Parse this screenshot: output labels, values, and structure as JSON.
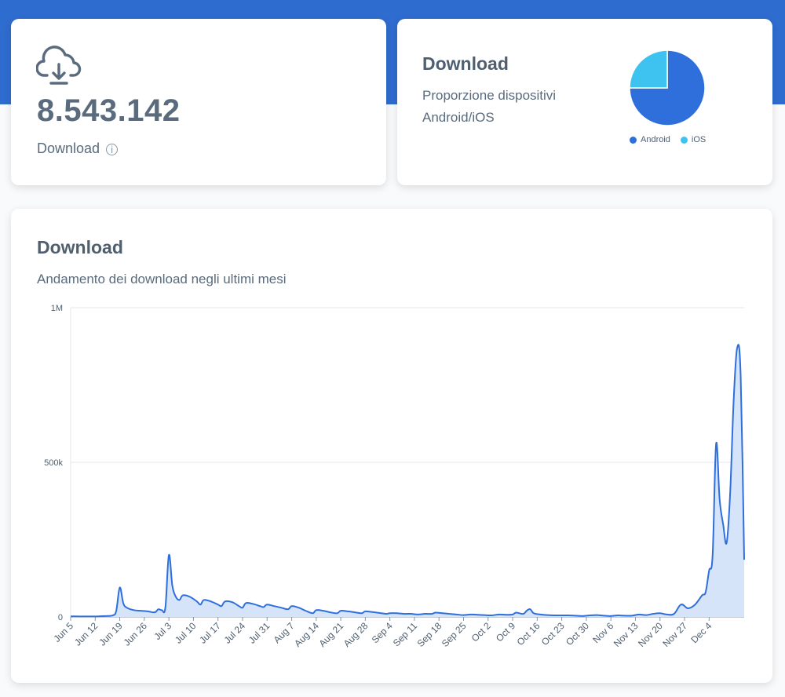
{
  "total_card": {
    "value": "8.543.142",
    "label": "Download",
    "info_icon": "info-icon",
    "icon": "cloud-download-icon"
  },
  "devices_card": {
    "title": "Download",
    "subtitle_line1": "Proporzione dispositivi",
    "subtitle_line2": "Android/iOS",
    "legend": [
      {
        "label": "Android",
        "color": "#2f6fdc"
      },
      {
        "label": "iOS",
        "color": "#3ec3f0"
      }
    ]
  },
  "trend_card": {
    "title": "Download",
    "subtitle": "Andamento dei download negli ultimi mesi"
  },
  "chart_data": [
    {
      "type": "pie",
      "title": "Download",
      "series": [
        {
          "name": "Android",
          "value": 75,
          "color": "#2f6fdc"
        },
        {
          "name": "iOS",
          "value": 25,
          "color": "#3ec3f0"
        }
      ],
      "legend_position": "bottom"
    },
    {
      "type": "area",
      "title": "Download",
      "ylim": [
        0,
        1000000
      ],
      "ytick_labels": [
        "0",
        "500k",
        "1M"
      ],
      "yticks": [
        0,
        500000,
        1000000
      ],
      "xtick_labels": [
        "Jun 5",
        "Jun 12",
        "Jun 19",
        "Jun 26",
        "Jul 3",
        "Jul 10",
        "Jul 17",
        "Jul 24",
        "Jul 31",
        "Aug 7",
        "Aug 14",
        "Aug 21",
        "Aug 28",
        "Sep 4",
        "Sep 11",
        "Sep 18",
        "Sep 25",
        "Oct 2",
        "Oct 9",
        "Oct 16",
        "Oct 23",
        "Oct 30",
        "Nov 6",
        "Nov 13",
        "Nov 20",
        "Nov 27",
        "Dec 4"
      ],
      "grid": true,
      "line_color": "#2f6fdc",
      "fill_color": "#d6e4fa",
      "points": [
        [
          0,
          2000
        ],
        [
          6,
          1500
        ],
        [
          10,
          3000
        ],
        [
          12,
          5000
        ],
        [
          13,
          20000
        ],
        [
          14,
          95000
        ],
        [
          15,
          45000
        ],
        [
          16,
          30000
        ],
        [
          18,
          22000
        ],
        [
          20,
          20000
        ],
        [
          22,
          18000
        ],
        [
          24,
          15000
        ],
        [
          25,
          25000
        ],
        [
          26,
          22000
        ],
        [
          27,
          30000
        ],
        [
          28,
          200000
        ],
        [
          29,
          100000
        ],
        [
          30,
          65000
        ],
        [
          31,
          55000
        ],
        [
          32,
          70000
        ],
        [
          34,
          65000
        ],
        [
          36,
          50000
        ],
        [
          37,
          40000
        ],
        [
          38,
          55000
        ],
        [
          40,
          50000
        ],
        [
          42,
          40000
        ],
        [
          43,
          35000
        ],
        [
          44,
          50000
        ],
        [
          46,
          48000
        ],
        [
          48,
          35000
        ],
        [
          49,
          30000
        ],
        [
          50,
          45000
        ],
        [
          52,
          42000
        ],
        [
          54,
          35000
        ],
        [
          55,
          32000
        ],
        [
          56,
          40000
        ],
        [
          58,
          35000
        ],
        [
          60,
          30000
        ],
        [
          62,
          25000
        ],
        [
          63,
          35000
        ],
        [
          65,
          30000
        ],
        [
          67,
          20000
        ],
        [
          69,
          12000
        ],
        [
          70,
          22000
        ],
        [
          72,
          20000
        ],
        [
          74,
          15000
        ],
        [
          76,
          12000
        ],
        [
          77,
          20000
        ],
        [
          79,
          18000
        ],
        [
          81,
          15000
        ],
        [
          83,
          12000
        ],
        [
          84,
          18000
        ],
        [
          86,
          16000
        ],
        [
          88,
          13000
        ],
        [
          90,
          10000
        ],
        [
          91,
          12000
        ],
        [
          93,
          12000
        ],
        [
          95,
          10000
        ],
        [
          97,
          10000
        ],
        [
          99,
          8000
        ],
        [
          101,
          10000
        ],
        [
          103,
          10000
        ],
        [
          104,
          14000
        ],
        [
          106,
          12000
        ],
        [
          108,
          10000
        ],
        [
          110,
          8000
        ],
        [
          112,
          6000
        ],
        [
          114,
          8000
        ],
        [
          116,
          7000
        ],
        [
          118,
          6000
        ],
        [
          120,
          5000
        ],
        [
          122,
          8000
        ],
        [
          124,
          7000
        ],
        [
          126,
          8000
        ],
        [
          127,
          14000
        ],
        [
          129,
          10000
        ],
        [
          130,
          20000
        ],
        [
          131,
          25000
        ],
        [
          132,
          12000
        ],
        [
          134,
          8000
        ],
        [
          136,
          6000
        ],
        [
          138,
          5000
        ],
        [
          140,
          5000
        ],
        [
          142,
          5000
        ],
        [
          144,
          4000
        ],
        [
          146,
          3000
        ],
        [
          148,
          5000
        ],
        [
          150,
          6000
        ],
        [
          152,
          4000
        ],
        [
          154,
          3000
        ],
        [
          156,
          5000
        ],
        [
          158,
          4000
        ],
        [
          160,
          4000
        ],
        [
          162,
          8000
        ],
        [
          164,
          6000
        ],
        [
          166,
          10000
        ],
        [
          168,
          12000
        ],
        [
          170,
          8000
        ],
        [
          172,
          10000
        ],
        [
          174,
          40000
        ],
        [
          176,
          28000
        ],
        [
          178,
          40000
        ],
        [
          180,
          70000
        ],
        [
          181,
          80000
        ],
        [
          182,
          150000
        ],
        [
          183,
          200000
        ],
        [
          184,
          560000
        ],
        [
          185,
          380000
        ],
        [
          186,
          300000
        ],
        [
          187,
          240000
        ],
        [
          188,
          400000
        ],
        [
          189,
          700000
        ],
        [
          190,
          870000
        ],
        [
          191,
          780000
        ],
        [
          192,
          185000
        ]
      ],
      "x_max": 192
    }
  ]
}
